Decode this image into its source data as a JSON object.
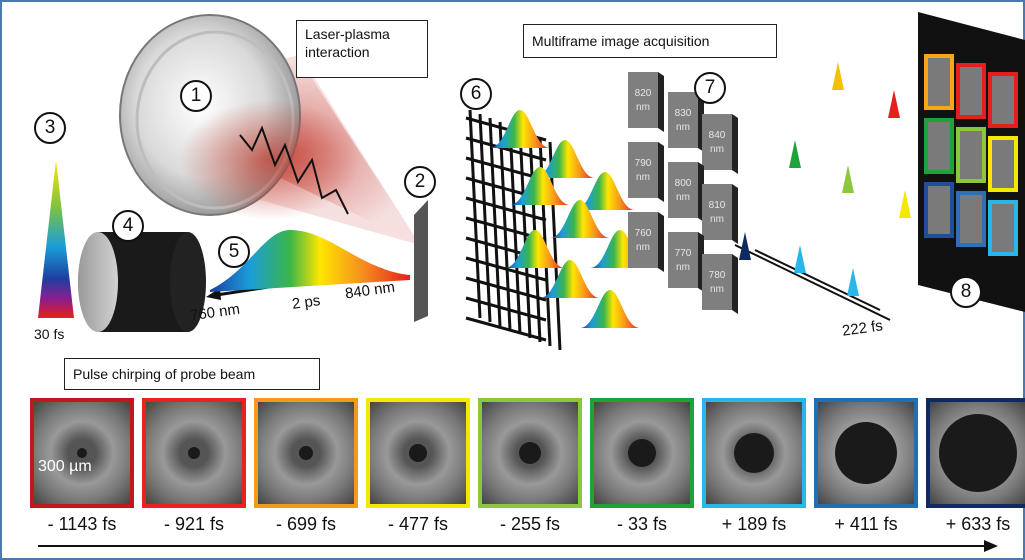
{
  "labels": {
    "laser_plasma": "Laser-plasma interaction",
    "multiframe": "Multiframe image acquisition",
    "chirping": "Pulse chirping of probe beam",
    "duration_30": "30 fs",
    "wl_760": "760 nm",
    "chirp_2ps": "2 ps",
    "wl_840": "840 nm",
    "spacing_222": "222 fs",
    "scale_bar": "300 µm"
  },
  "markers": [
    "1",
    "2",
    "3",
    "4",
    "5",
    "6",
    "7",
    "8"
  ],
  "filters": [
    {
      "label": "820 nm"
    },
    {
      "label": "830 nm"
    },
    {
      "label": "840 nm"
    },
    {
      "label": "790 nm"
    },
    {
      "label": "800 nm"
    },
    {
      "label": "810 nm"
    },
    {
      "label": "760 nm"
    },
    {
      "label": "770 nm"
    },
    {
      "label": "780 nm"
    }
  ],
  "frames": [
    {
      "delay": "- 1143 fs",
      "color": "#c0181c"
    },
    {
      "delay": "- 921 fs",
      "color": "#e8231f"
    },
    {
      "delay": "- 699 fs",
      "color": "#f29b1a"
    },
    {
      "delay": "- 477 fs",
      "color": "#f2e800"
    },
    {
      "delay": "- 255 fs",
      "color": "#8cc63f"
    },
    {
      "delay": "- 33 fs",
      "color": "#1fa23a"
    },
    {
      "delay": "+ 189 fs",
      "color": "#29b6e8"
    },
    {
      "delay": "+ 411 fs",
      "color": "#1f6fb4"
    },
    {
      "delay": "+ 633 fs",
      "color": "#0f2a5c"
    }
  ]
}
